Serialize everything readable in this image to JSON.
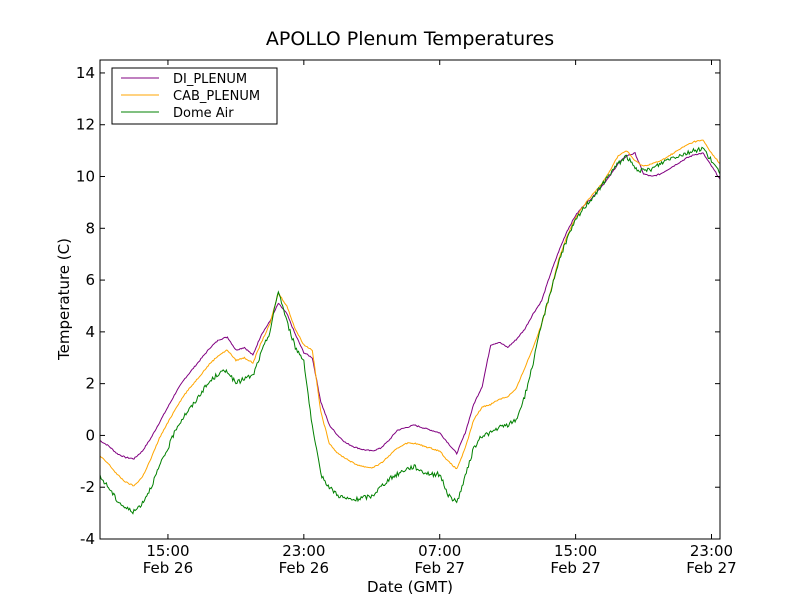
{
  "chart_data": {
    "type": "line",
    "title": "APOLLO Plenum Temperatures",
    "xlabel": "Date (GMT)",
    "ylabel": "Temperature (C)",
    "xlim": [
      11.0,
      47.5
    ],
    "ylim": [
      -4,
      14.5
    ],
    "yticks": [
      -4,
      -2,
      0,
      2,
      4,
      6,
      8,
      10,
      12,
      14
    ],
    "xticks": [
      {
        "hours": 15,
        "time": "15:00",
        "date": "Feb 26"
      },
      {
        "hours": 23,
        "time": "23:00",
        "date": "Feb 26"
      },
      {
        "hours": 31,
        "time": "07:00",
        "date": "Feb 27"
      },
      {
        "hours": 39,
        "time": "15:00",
        "date": "Feb 27"
      },
      {
        "hours": 47,
        "time": "23:00",
        "date": "Feb 27"
      }
    ],
    "legend": {
      "placement": "top-left"
    },
    "series": [
      {
        "name": "DI_PLENUM",
        "color": "#800080",
        "x": [
          11.0,
          11.5,
          12.0,
          12.5,
          13.0,
          13.5,
          14.0,
          14.5,
          15.0,
          15.5,
          16.0,
          16.5,
          17.0,
          17.5,
          18.0,
          18.5,
          19.0,
          19.5,
          20.0,
          20.5,
          21.0,
          21.5,
          22.0,
          22.5,
          23.0,
          23.5,
          24.0,
          24.5,
          25.0,
          25.5,
          26.0,
          26.5,
          27.0,
          27.5,
          28.0,
          28.5,
          29.0,
          29.5,
          30.0,
          30.5,
          31.0,
          31.5,
          32.0,
          32.5,
          33.0,
          33.5,
          34.0,
          34.5,
          35.0,
          35.5,
          36.0,
          36.5,
          37.0,
          37.5,
          38.0,
          38.5,
          39.0,
          39.5,
          40.0,
          40.5,
          41.0,
          41.5,
          42.0,
          42.5,
          43.0,
          43.5,
          44.0,
          44.5,
          45.0,
          45.5,
          46.0,
          46.5,
          47.0,
          47.5
        ],
        "values": [
          -0.2,
          -0.4,
          -0.7,
          -0.85,
          -0.9,
          -0.6,
          -0.1,
          0.5,
          1.1,
          1.7,
          2.2,
          2.6,
          3.0,
          3.4,
          3.7,
          3.8,
          3.3,
          3.4,
          3.1,
          3.9,
          4.4,
          5.1,
          4.7,
          3.9,
          3.2,
          3.0,
          1.3,
          0.4,
          0.0,
          -0.3,
          -0.45,
          -0.55,
          -0.6,
          -0.5,
          -0.2,
          0.2,
          0.3,
          0.4,
          0.3,
          0.2,
          0.1,
          -0.3,
          -0.7,
          0.1,
          1.2,
          1.9,
          3.5,
          3.6,
          3.4,
          3.7,
          4.1,
          4.7,
          5.2,
          6.2,
          7.1,
          7.9,
          8.5,
          8.9,
          9.2,
          9.6,
          10.0,
          10.5,
          10.8,
          10.9,
          10.1,
          10.0,
          10.1,
          10.3,
          10.5,
          10.7,
          10.85,
          10.9,
          10.4,
          9.9
        ]
      },
      {
        "name": "CAB_PLENUM",
        "color": "#ffa500",
        "x": [
          11.0,
          11.5,
          12.0,
          12.5,
          13.0,
          13.5,
          14.0,
          14.5,
          15.0,
          15.5,
          16.0,
          16.5,
          17.0,
          17.5,
          18.0,
          18.5,
          19.0,
          19.5,
          20.0,
          20.5,
          21.0,
          21.5,
          22.0,
          22.5,
          23.0,
          23.5,
          24.0,
          24.5,
          25.0,
          25.5,
          26.0,
          26.5,
          27.0,
          27.5,
          28.0,
          28.5,
          29.0,
          29.5,
          30.0,
          30.5,
          31.0,
          31.5,
          32.0,
          32.5,
          33.0,
          33.5,
          34.0,
          34.5,
          35.0,
          35.5,
          36.0,
          36.5,
          37.0,
          37.5,
          38.0,
          38.5,
          39.0,
          39.5,
          40.0,
          40.5,
          41.0,
          41.5,
          42.0,
          42.5,
          43.0,
          43.5,
          44.0,
          44.5,
          45.0,
          45.5,
          46.0,
          46.5,
          47.0,
          47.5
        ],
        "values": [
          -0.8,
          -1.1,
          -1.5,
          -1.8,
          -1.95,
          -1.6,
          -0.9,
          -0.1,
          0.5,
          1.1,
          1.6,
          2.0,
          2.4,
          2.8,
          3.1,
          3.3,
          2.9,
          3.0,
          2.8,
          3.6,
          4.3,
          5.5,
          5.0,
          4.1,
          3.5,
          3.3,
          0.9,
          -0.3,
          -0.7,
          -0.9,
          -1.1,
          -1.2,
          -1.25,
          -1.1,
          -0.8,
          -0.5,
          -0.3,
          -0.3,
          -0.4,
          -0.5,
          -0.6,
          -1.0,
          -1.3,
          -0.5,
          0.6,
          1.1,
          1.2,
          1.4,
          1.5,
          1.8,
          2.6,
          3.4,
          4.3,
          5.5,
          6.8,
          7.7,
          8.4,
          8.9,
          9.3,
          9.7,
          10.2,
          10.8,
          11.0,
          10.6,
          10.4,
          10.5,
          10.6,
          10.8,
          11.0,
          11.2,
          11.35,
          11.4,
          10.9,
          10.5
        ]
      },
      {
        "name": "Dome Air",
        "color": "#008000",
        "x": [
          11.0,
          11.5,
          12.0,
          12.5,
          13.0,
          13.5,
          14.0,
          14.5,
          15.0,
          15.5,
          16.0,
          16.5,
          17.0,
          17.5,
          18.0,
          18.5,
          19.0,
          19.5,
          20.0,
          20.5,
          21.0,
          21.5,
          22.0,
          22.5,
          23.0,
          23.5,
          24.0,
          24.5,
          25.0,
          25.5,
          26.0,
          26.5,
          27.0,
          27.5,
          28.0,
          28.5,
          29.0,
          29.5,
          30.0,
          30.5,
          31.0,
          31.5,
          32.0,
          32.5,
          33.0,
          33.5,
          34.0,
          34.5,
          35.0,
          35.5,
          36.0,
          36.5,
          37.0,
          37.5,
          38.0,
          38.5,
          39.0,
          39.5,
          40.0,
          40.5,
          41.0,
          41.5,
          42.0,
          42.5,
          43.0,
          43.5,
          44.0,
          44.5,
          45.0,
          45.5,
          46.0,
          46.5,
          47.0,
          47.5
        ],
        "values": [
          -1.6,
          -2.0,
          -2.5,
          -2.8,
          -2.95,
          -2.6,
          -2.0,
          -1.2,
          -0.5,
          0.3,
          0.8,
          1.2,
          1.7,
          2.1,
          2.4,
          2.5,
          2.0,
          2.2,
          2.3,
          3.2,
          4.0,
          5.6,
          4.4,
          3.4,
          2.9,
          0.3,
          -1.5,
          -2.0,
          -2.3,
          -2.45,
          -2.5,
          -2.4,
          -2.35,
          -2.0,
          -1.7,
          -1.5,
          -1.3,
          -1.2,
          -1.4,
          -1.5,
          -1.5,
          -2.3,
          -2.6,
          -1.6,
          -0.5,
          0.0,
          0.1,
          0.3,
          0.4,
          0.6,
          1.5,
          2.8,
          4.3,
          5.5,
          6.7,
          7.6,
          8.3,
          8.8,
          9.2,
          9.6,
          10.1,
          10.5,
          10.8,
          10.3,
          10.2,
          10.3,
          10.5,
          10.7,
          10.8,
          10.9,
          11.0,
          11.1,
          10.6,
          10.1
        ]
      }
    ]
  }
}
